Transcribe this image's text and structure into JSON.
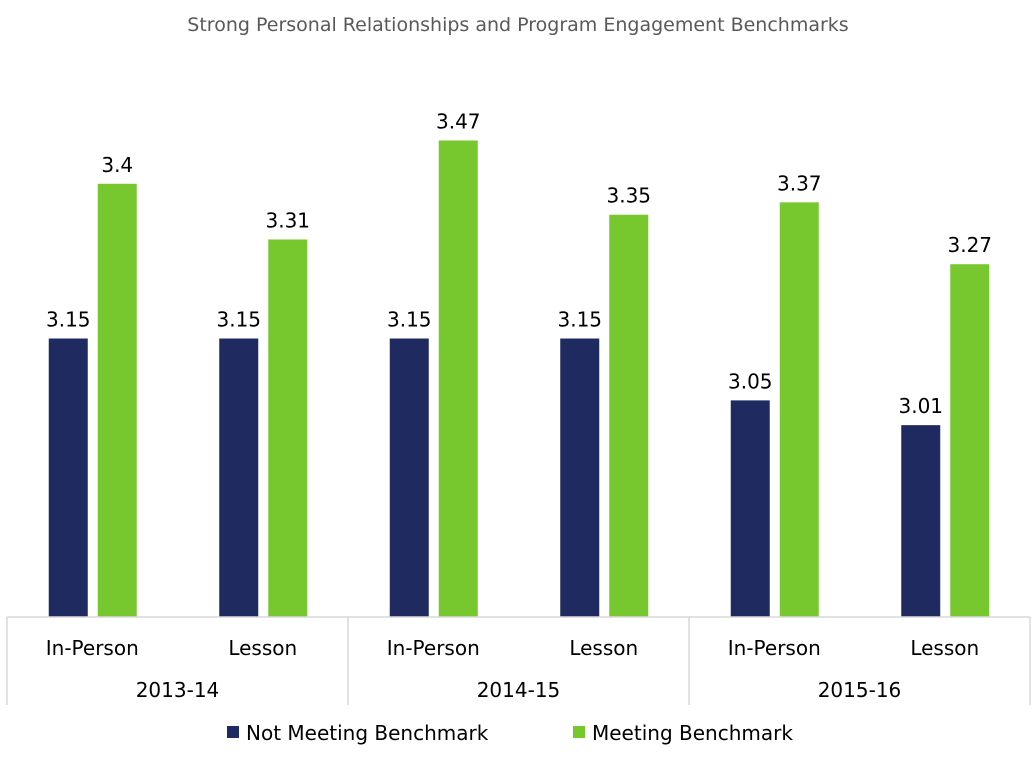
{
  "chart_data": {
    "type": "bar",
    "title": "Strong Personal Relationships and Program Engagement Benchmarks",
    "xlabel": "",
    "ylabel": "",
    "ylim": [
      2.7,
      3.6
    ],
    "grid": false,
    "legend_position": "bottom",
    "groups": [
      "2013-14",
      "2014-15",
      "2015-16"
    ],
    "categories": [
      "In-Person",
      "Lesson",
      "In-Person",
      "Lesson",
      "In-Person",
      "Lesson"
    ],
    "series": [
      {
        "name": "Not Meeting Benchmark",
        "color": "#1F2A60",
        "values": [
          3.15,
          3.15,
          3.15,
          3.15,
          3.05,
          3.01
        ],
        "labels": [
          "3.15",
          "3.15",
          "3.15",
          "3.15",
          "3.05",
          "3.01"
        ]
      },
      {
        "name": "Meeting Benchmark",
        "color": "#77C72F",
        "values": [
          3.4,
          3.31,
          3.47,
          3.35,
          3.37,
          3.27
        ],
        "labels": [
          "3.4",
          "3.31",
          "3.47",
          "3.35",
          "3.37",
          "3.27"
        ]
      }
    ]
  }
}
